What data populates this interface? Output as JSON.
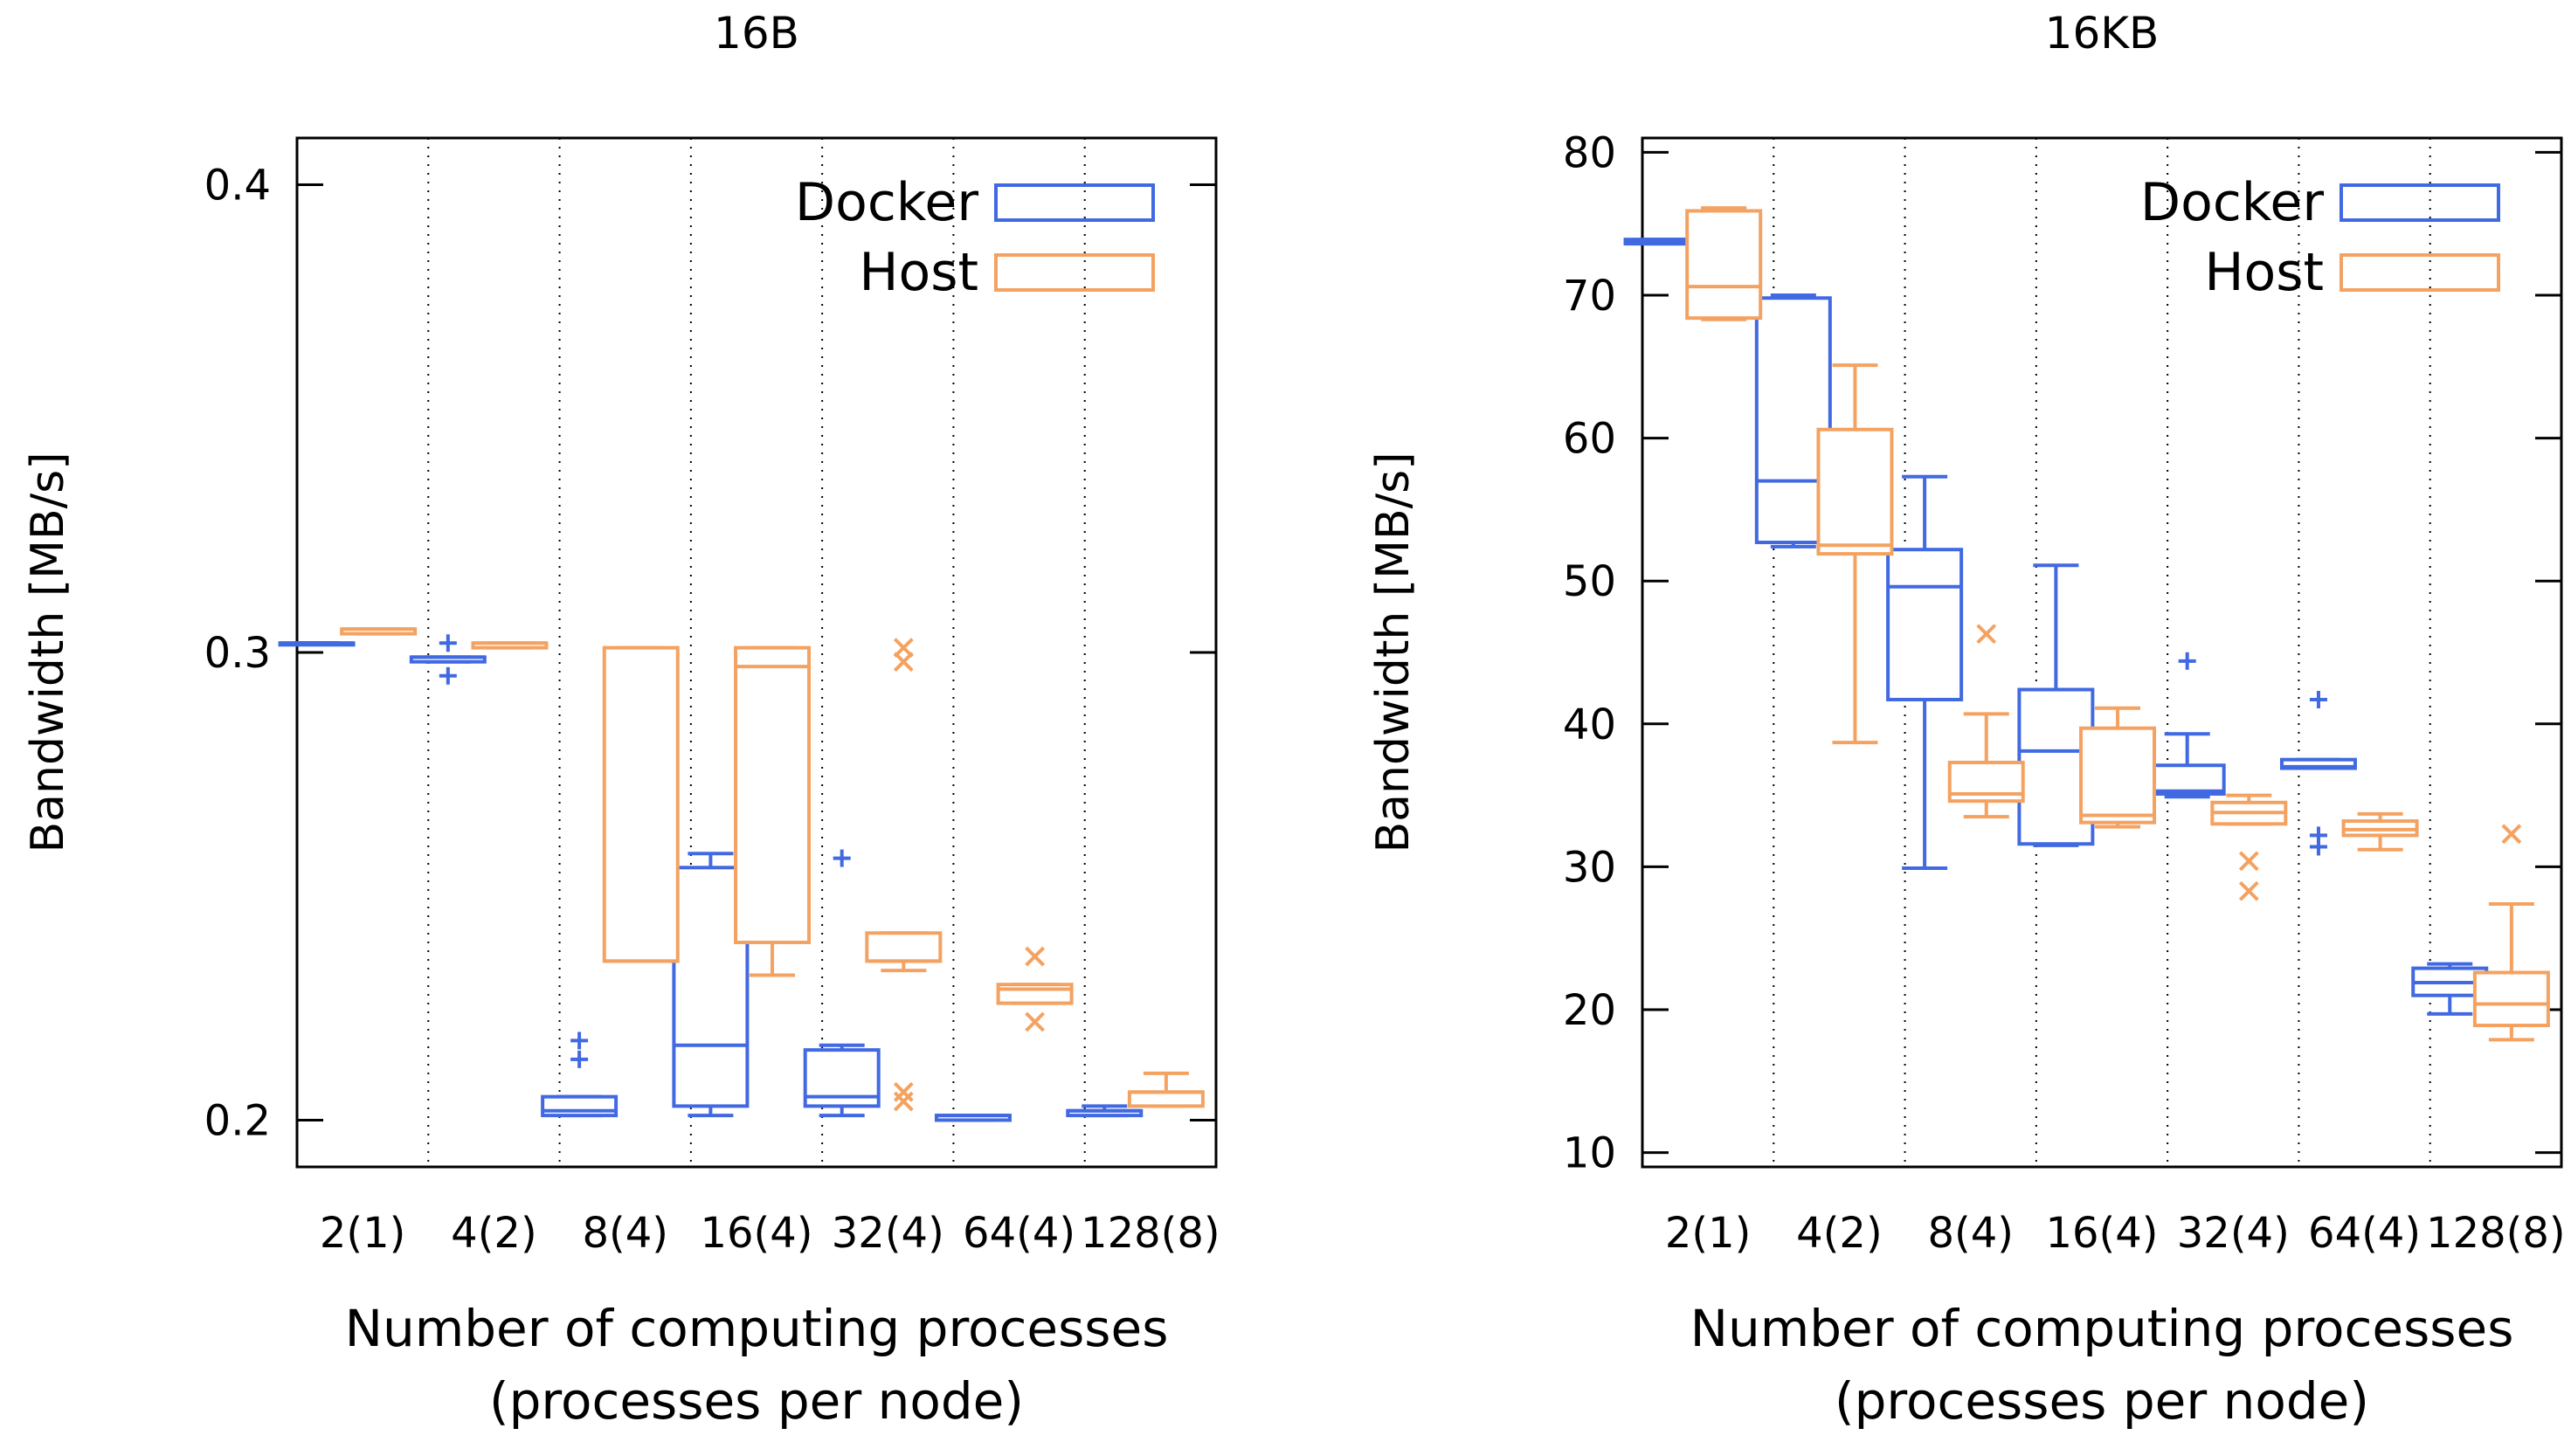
{
  "colors": {
    "docker": "#4169e1",
    "host": "#f4a261",
    "axis": "#000000",
    "grid": "#000000"
  },
  "chart_data": [
    {
      "type": "boxplot",
      "title": "16B",
      "xlabel_line1": "Number of computing processes",
      "xlabel_line2": "(processes per node)",
      "ylabel": "Bandwidth [MB/s]",
      "ylim": [
        0.19,
        0.41
      ],
      "yticks": [
        0.2,
        0.3,
        0.4
      ],
      "ytick_labels": [
        "0.2",
        "0.3",
        "0.4"
      ],
      "categories": [
        "2(1)",
        "4(2)",
        "8(4)",
        "16(4)",
        "32(4)",
        "64(4)",
        "128(8)"
      ],
      "legend": {
        "placement": "top-right",
        "entries": [
          "Docker",
          "Host"
        ]
      },
      "series": [
        {
          "name": "Docker",
          "color": "#4169e1",
          "outlier_marker": "+",
          "boxes": [
            {
              "min": 0.302,
              "q1": 0.302,
              "median": 0.302,
              "q3": 0.302,
              "max": 0.302,
              "outliers": []
            },
            {
              "min": 0.298,
              "q1": 0.298,
              "median": 0.299,
              "q3": 0.299,
              "max": 0.299,
              "outliers": [
                0.302,
                0.295
              ]
            },
            {
              "min": 0.201,
              "q1": 0.201,
              "median": 0.202,
              "q3": 0.205,
              "max": 0.205,
              "outliers": [
                0.213,
                0.217
              ]
            },
            {
              "min": 0.201,
              "q1": 0.203,
              "median": 0.216,
              "q3": 0.254,
              "max": 0.257,
              "outliers": []
            },
            {
              "min": 0.201,
              "q1": 0.203,
              "median": 0.205,
              "q3": 0.215,
              "max": 0.216,
              "outliers": [
                0.256
              ]
            },
            {
              "min": 0.2,
              "q1": 0.2,
              "median": 0.201,
              "q3": 0.201,
              "max": 0.201,
              "outliers": []
            },
            {
              "min": 0.201,
              "q1": 0.201,
              "median": 0.202,
              "q3": 0.202,
              "max": 0.203,
              "outliers": []
            }
          ]
        },
        {
          "name": "Host",
          "color": "#f4a261",
          "outlier_marker": "x",
          "boxes": [
            {
              "min": 0.304,
              "q1": 0.304,
              "median": 0.305,
              "q3": 0.305,
              "max": 0.305,
              "outliers": []
            },
            {
              "min": 0.301,
              "q1": 0.301,
              "median": 0.302,
              "q3": 0.302,
              "max": 0.302,
              "outliers": []
            },
            {
              "min": 0.234,
              "q1": 0.234,
              "median": 0.234,
              "q3": 0.301,
              "max": 0.301,
              "outliers": []
            },
            {
              "min": 0.231,
              "q1": 0.238,
              "median": 0.297,
              "q3": 0.301,
              "max": 0.301,
              "outliers": []
            },
            {
              "min": 0.232,
              "q1": 0.234,
              "median": 0.234,
              "q3": 0.24,
              "max": 0.24,
              "outliers": [
                0.301,
                0.298,
                0.206,
                0.204
              ]
            },
            {
              "min": 0.225,
              "q1": 0.225,
              "median": 0.228,
              "q3": 0.229,
              "max": 0.229,
              "outliers": [
                0.235,
                0.221
              ]
            },
            {
              "min": 0.203,
              "q1": 0.203,
              "median": 0.206,
              "q3": 0.206,
              "max": 0.21,
              "outliers": []
            }
          ]
        }
      ]
    },
    {
      "type": "boxplot",
      "title": "16KB",
      "xlabel_line1": "Number of computing processes",
      "xlabel_line2": "(processes per node)",
      "ylabel": "Bandwidth [MB/s]",
      "ylim": [
        9,
        81
      ],
      "yticks": [
        10,
        20,
        30,
        40,
        50,
        60,
        70,
        80
      ],
      "ytick_labels": [
        "10",
        "20",
        "30",
        "40",
        "50",
        "60",
        "70",
        "80"
      ],
      "categories": [
        "2(1)",
        "4(2)",
        "8(4)",
        "16(4)",
        "32(4)",
        "64(4)",
        "128(8)"
      ],
      "legend": {
        "placement": "top-right",
        "entries": [
          "Docker",
          "Host"
        ]
      },
      "series": [
        {
          "name": "Docker",
          "color": "#4169e1",
          "outlier_marker": "+",
          "boxes": [
            {
              "min": 73.6,
              "q1": 73.6,
              "median": 73.8,
              "q3": 73.9,
              "max": 73.9,
              "outliers": []
            },
            {
              "min": 52.4,
              "q1": 52.7,
              "median": 57.0,
              "q3": 69.8,
              "max": 70.0,
              "outliers": []
            },
            {
              "min": 29.9,
              "q1": 41.7,
              "median": 49.6,
              "q3": 52.2,
              "max": 57.3,
              "outliers": []
            },
            {
              "min": 31.5,
              "q1": 31.6,
              "median": 38.1,
              "q3": 42.4,
              "max": 51.1,
              "outliers": []
            },
            {
              "min": 34.9,
              "q1": 35.1,
              "median": 35.3,
              "q3": 37.1,
              "max": 39.3,
              "outliers": [
                44.4
              ]
            },
            {
              "min": 36.9,
              "q1": 36.9,
              "median": 37.0,
              "q3": 37.5,
              "max": 37.5,
              "outliers": [
                41.7,
                32.2,
                31.4
              ]
            },
            {
              "min": 19.7,
              "q1": 21.0,
              "median": 21.9,
              "q3": 22.9,
              "max": 23.2,
              "outliers": []
            }
          ]
        },
        {
          "name": "Host",
          "color": "#f4a261",
          "outlier_marker": "x",
          "boxes": [
            {
              "min": 68.3,
              "q1": 68.4,
              "median": 70.6,
              "q3": 75.9,
              "max": 76.1,
              "outliers": []
            },
            {
              "min": 38.7,
              "q1": 51.9,
              "median": 52.5,
              "q3": 60.6,
              "max": 65.1,
              "outliers": []
            },
            {
              "min": 33.5,
              "q1": 34.6,
              "median": 35.1,
              "q3": 37.3,
              "max": 40.7,
              "outliers": [
                46.3
              ]
            },
            {
              "min": 32.8,
              "q1": 33.1,
              "median": 33.6,
              "q3": 39.7,
              "max": 41.1,
              "outliers": []
            },
            {
              "min": 33.0,
              "q1": 33.0,
              "median": 33.8,
              "q3": 34.5,
              "max": 35.0,
              "outliers": [
                30.4,
                28.3
              ]
            },
            {
              "min": 31.2,
              "q1": 32.2,
              "median": 32.6,
              "q3": 33.2,
              "max": 33.7,
              "outliers": []
            },
            {
              "min": 17.9,
              "q1": 18.9,
              "median": 20.4,
              "q3": 22.6,
              "max": 27.4,
              "outliers": [
                32.3
              ]
            }
          ]
        }
      ]
    }
  ]
}
